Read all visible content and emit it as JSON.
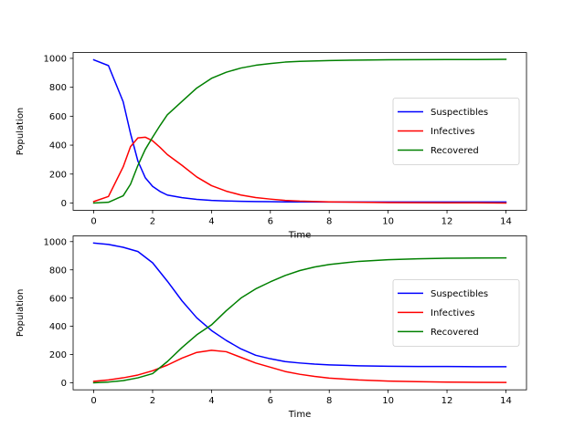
{
  "chart_data": [
    {
      "type": "line",
      "title": "",
      "xlabel": "Time",
      "ylabel": "Population",
      "xlim": [
        -0.7,
        14.7
      ],
      "ylim": [
        -50,
        1040
      ],
      "xticks": [
        0,
        2,
        4,
        6,
        8,
        10,
        12,
        14
      ],
      "yticks": [
        0,
        200,
        400,
        600,
        800,
        1000
      ],
      "grid": false,
      "legend_position": "center-right",
      "x": [
        0,
        0.5,
        1,
        1.25,
        1.5,
        1.75,
        2,
        2.25,
        2.5,
        3,
        3.5,
        4,
        4.5,
        5,
        5.5,
        6,
        6.5,
        7,
        8,
        9,
        10,
        11,
        12,
        13,
        14
      ],
      "series": [
        {
          "name": "Suspectibles",
          "color": "#0000ff",
          "values": [
            990,
            950,
            700,
            480,
            290,
            175,
            115,
            80,
            55,
            37,
            25,
            18,
            14,
            12,
            10,
            9,
            8,
            8,
            7,
            7,
            7,
            7,
            7,
            7,
            7
          ]
        },
        {
          "name": "Infectives",
          "color": "#ff0000",
          "values": [
            10,
            45,
            250,
            390,
            450,
            455,
            430,
            385,
            335,
            260,
            180,
            120,
            82,
            55,
            38,
            27,
            18,
            13,
            8,
            5,
            3,
            2,
            1,
            1,
            0
          ]
        },
        {
          "name": "Recovered",
          "color": "#008000",
          "values": [
            0,
            5,
            50,
            130,
            260,
            370,
            455,
            535,
            610,
            703,
            795,
            862,
            904,
            933,
            952,
            964,
            974,
            979,
            985,
            988,
            990,
            991,
            992,
            992,
            993
          ]
        }
      ]
    },
    {
      "type": "line",
      "title": "",
      "xlabel": "Time",
      "ylabel": "Population",
      "xlim": [
        -0.7,
        14.7
      ],
      "ylim": [
        -50,
        1040
      ],
      "xticks": [
        0,
        2,
        4,
        6,
        8,
        10,
        12,
        14
      ],
      "yticks": [
        0,
        200,
        400,
        600,
        800,
        1000
      ],
      "grid": false,
      "legend_position": "center-right",
      "x": [
        0,
        0.5,
        1,
        1.5,
        2,
        2.5,
        3,
        3.5,
        4,
        4.5,
        5,
        5.5,
        6,
        6.5,
        7,
        7.5,
        8,
        9,
        10,
        11,
        12,
        13,
        14
      ],
      "series": [
        {
          "name": "Suspectibles",
          "color": "#0000ff",
          "values": [
            990,
            980,
            960,
            930,
            850,
            720,
            580,
            460,
            370,
            300,
            240,
            195,
            170,
            150,
            140,
            132,
            127,
            120,
            117,
            115,
            115,
            114,
            114
          ]
        },
        {
          "name": "Infectives",
          "color": "#ff0000",
          "values": [
            10,
            20,
            35,
            55,
            85,
            125,
            175,
            215,
            230,
            220,
            180,
            140,
            110,
            80,
            60,
            45,
            33,
            20,
            12,
            8,
            5,
            3,
            2
          ]
        },
        {
          "name": "Recovered",
          "color": "#008000",
          "values": [
            0,
            5,
            15,
            35,
            65,
            150,
            250,
            340,
            410,
            510,
            600,
            665,
            715,
            760,
            795,
            820,
            838,
            860,
            872,
            878,
            882,
            884,
            885
          ]
        }
      ]
    }
  ]
}
